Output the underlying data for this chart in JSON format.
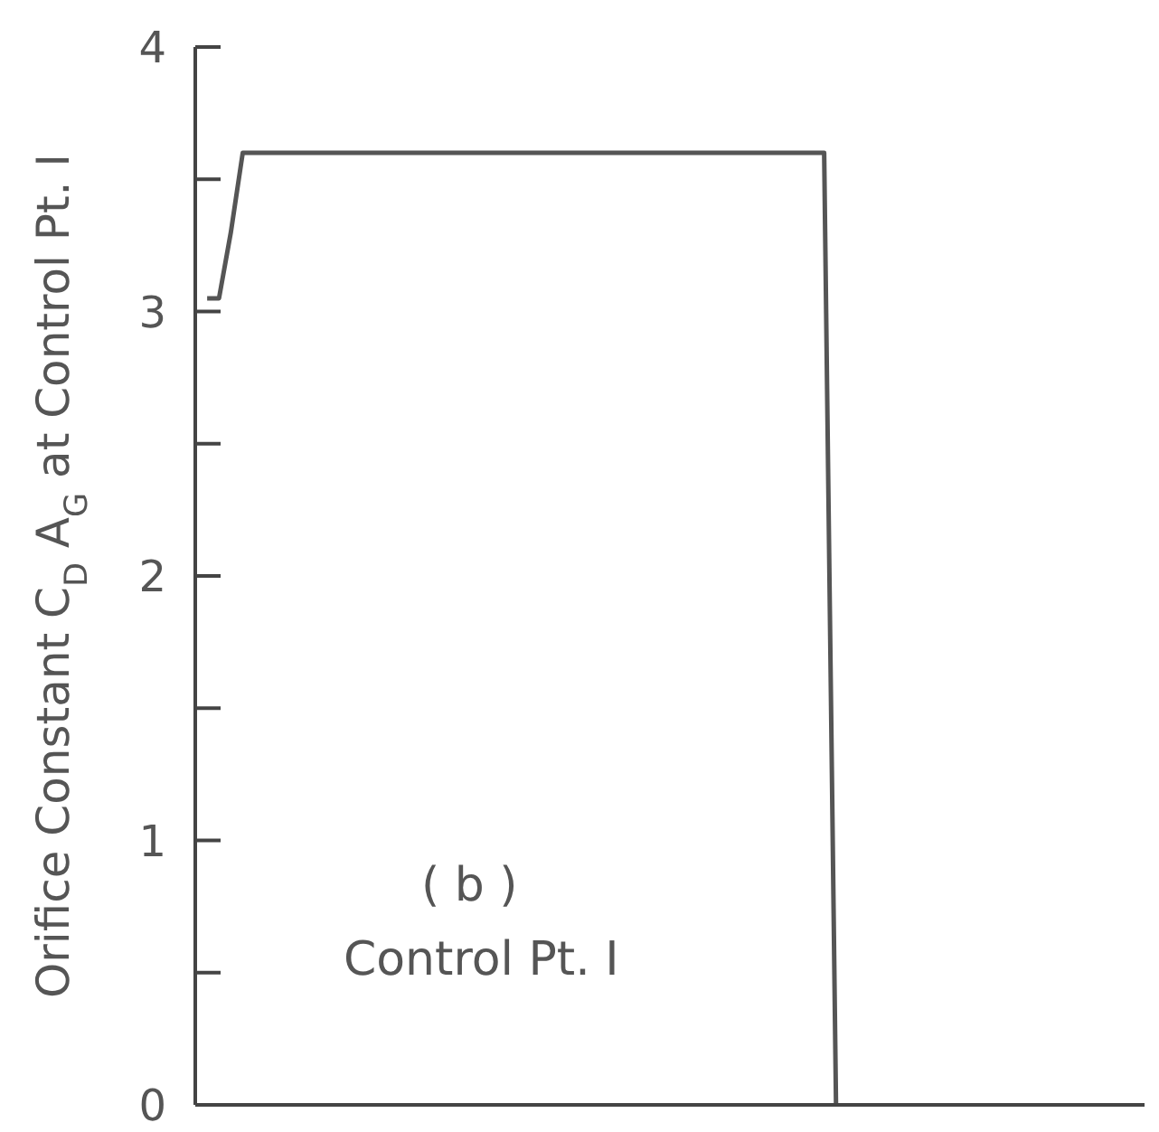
{
  "chart_data": {
    "type": "line",
    "ylabel": "Orifice Constant C$_{D}$ A$_{G}$ at Control Pt. I",
    "annotations": [
      "( b )",
      "Control Pt. I"
    ],
    "categories": [
      null,
      null,
      null,
      null,
      null,
      null,
      null,
      null,
      null,
      null,
      null,
      null,
      null,
      null,
      null,
      null,
      null,
      null,
      null,
      null,
      null,
      null,
      null,
      null,
      null,
      null,
      null,
      null,
      null,
      null,
      null,
      null,
      null,
      null,
      null,
      null,
      null,
      null,
      null,
      null,
      null,
      null,
      null,
      null,
      null,
      null,
      null,
      null,
      null,
      null,
      null,
      null,
      null,
      null,
      null,
      null,
      null,
      null,
      null,
      null,
      null,
      null,
      null,
      null,
      null,
      null,
      null,
      null,
      null,
      null,
      null,
      null,
      null,
      null,
      null,
      null,
      null,
      null,
      null,
      null,
      null
    ],
    "series": [
      {
        "color": "#555555",
        "values": [
          null,
          3.05,
          3.05,
          3.3,
          3.6,
          3.6,
          3.6,
          3.6,
          3.6,
          3.6,
          3.6,
          3.6,
          3.6,
          3.6,
          3.6,
          3.6,
          3.6,
          3.6,
          3.6,
          3.6,
          3.6,
          3.6,
          3.6,
          3.6,
          3.6,
          3.6,
          3.6,
          3.6,
          3.6,
          3.6,
          3.6,
          3.6,
          3.6,
          3.6,
          3.6,
          3.6,
          3.6,
          3.6,
          3.6,
          3.6,
          3.6,
          3.6,
          3.6,
          3.6,
          3.6,
          3.6,
          3.6,
          3.6,
          3.6,
          3.6,
          3.6,
          3.6,
          3.6,
          3.6,
          0,
          null,
          null,
          null,
          null,
          null,
          null,
          null,
          null,
          null,
          null,
          null,
          null,
          null,
          null,
          null,
          null,
          null,
          null,
          null,
          null,
          null,
          null,
          null,
          null,
          null,
          null
        ]
      }
    ],
    "ylim": [
      0,
      4
    ],
    "yticks": [
      0,
      {
        "value": 0.5,
        "label": null
      },
      1,
      {
        "value": 1.5,
        "label": null
      },
      2,
      {
        "value": 2.5,
        "label": null
      },
      3,
      {
        "value": 3.5,
        "label": null
      },
      4
    ],
    "tick_labels": "y",
    "grid": false,
    "legend": false,
    "marker": "none",
    "line_style": "solid"
  }
}
